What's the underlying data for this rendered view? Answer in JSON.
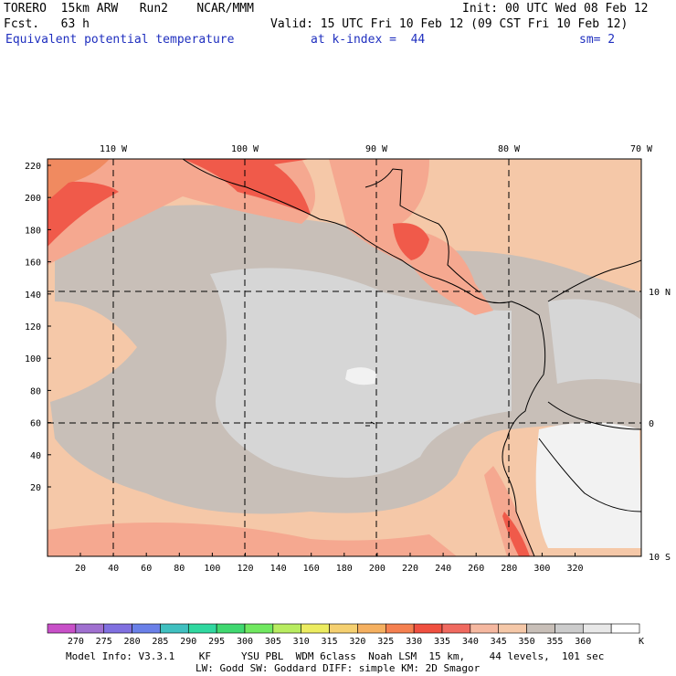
{
  "header": {
    "model": "TORERO  15km ARW   Run2    NCAR/MMM",
    "init": "Init: 00 UTC Wed 08 Feb 12",
    "fcst": "Fcst.   63 h",
    "valid": "Valid: 15 UTC Fri 10 Feb 12 (09 CST Fri 10 Feb 12)",
    "field": "Equivalent potential temperature",
    "level": "at k-index =  44",
    "smooth": "sm= 2"
  },
  "top_lon_labels": [
    "110 W",
    "100 W",
    "90 W",
    "80 W",
    "70 W"
  ],
  "right_lat_labels": [
    "10 N",
    "0",
    "10 S"
  ],
  "left_ticks": [
    "220",
    "200",
    "180",
    "160",
    "140",
    "120",
    "100",
    "80",
    "60",
    "40",
    "20"
  ],
  "bottom_ticks": [
    "20",
    "40",
    "60",
    "80",
    "100",
    "120",
    "140",
    "160",
    "180",
    "200",
    "220",
    "240",
    "260",
    "280",
    "300",
    "320"
  ],
  "colorbar": {
    "labels": [
      "270",
      "275",
      "280",
      "285",
      "290",
      "295",
      "300",
      "305",
      "310",
      "315",
      "320",
      "325",
      "330",
      "335",
      "340",
      "345",
      "350",
      "355",
      "360"
    ],
    "unit": "K",
    "colors": [
      "#c850c8",
      "#a070d0",
      "#8070e0",
      "#6a80e8",
      "#40c0c0",
      "#30d8a0",
      "#40d870",
      "#70e860",
      "#b8ec60",
      "#ecec60",
      "#f5d070",
      "#f5b060",
      "#f58050",
      "#f05040",
      "#f06a60",
      "#f5b8a0",
      "#f5c8a8",
      "#c8bfb8",
      "#cccccc",
      "#e8e8e8",
      "#ffffff"
    ]
  },
  "footer": {
    "line1": "Model Info: V3.3.1    KF     YSU PBL  WDM 6class  Noah LSM  15 km,    44 levels,  101 sec",
    "line2": "LW: Godd SW: Goddard DIFF: simple KM: 2D Smagor"
  },
  "map_colors": {
    "bg": "#f5c8a8",
    "gray": "#c8bfb8",
    "lightgray": "#d6d6d6",
    "white": "#f2f2f2",
    "salmon": "#f5a890",
    "red": "#f05a4a",
    "orange": "#f08a60"
  }
}
